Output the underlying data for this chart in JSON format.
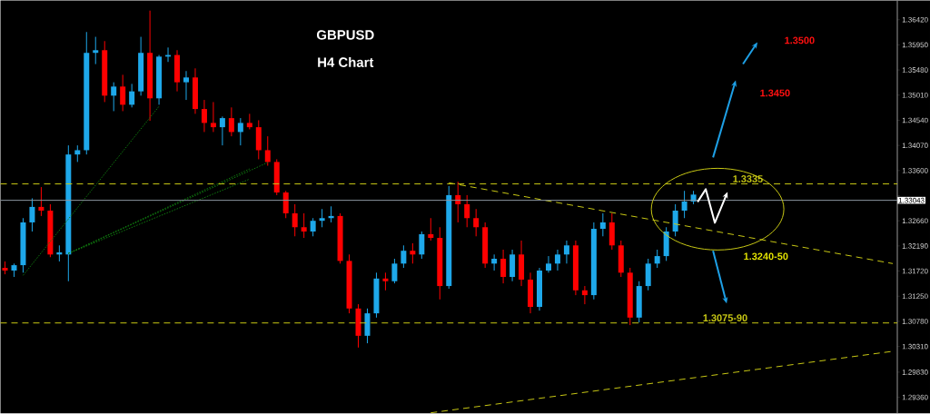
{
  "chart_data": {
    "type": "candlestick",
    "title": "GBPUSD",
    "subtitle": "H4 Chart",
    "categories": [
      null,
      null,
      null,
      null,
      null,
      null,
      null,
      null,
      null,
      null,
      null,
      null,
      null,
      null,
      null,
      null,
      null,
      null,
      null,
      null,
      null,
      null,
      null,
      null,
      null,
      null,
      null,
      null,
      null,
      null,
      null,
      null,
      null,
      null,
      null,
      null,
      null,
      null,
      null,
      null,
      null,
      null,
      null,
      null,
      null,
      null,
      null,
      null,
      null,
      null,
      null,
      null,
      null,
      null,
      null,
      null,
      null,
      null,
      null,
      null,
      null,
      null,
      null,
      null,
      null,
      null,
      null,
      null,
      null,
      null,
      null,
      null,
      null,
      null,
      null,
      null,
      null,
      null,
      null,
      null,
      null,
      null,
      null,
      null,
      null,
      null,
      null,
      null,
      null,
      null,
      null,
      null,
      null,
      null,
      null,
      null,
      null,
      null,
      null
    ],
    "ohlc": [
      [
        1.3178,
        1.319,
        1.3166,
        1.3173
      ],
      [
        1.3173,
        1.3186,
        1.3161,
        1.3183
      ],
      [
        1.3183,
        1.3271,
        1.3169,
        1.3263
      ],
      [
        1.3263,
        1.3308,
        1.3246,
        1.3292
      ],
      [
        1.3292,
        1.3329,
        1.3275,
        1.3285
      ],
      [
        1.3285,
        1.3297,
        1.3198,
        1.3203
      ],
      [
        1.3203,
        1.322,
        1.319,
        1.3207
      ],
      [
        1.3203,
        1.3407,
        1.3153,
        1.339
      ],
      [
        1.339,
        1.3407,
        1.3376,
        1.3398
      ],
      [
        1.3398,
        1.3619,
        1.339,
        1.358
      ],
      [
        1.358,
        1.361,
        1.3559,
        1.3585
      ],
      [
        1.3585,
        1.3602,
        1.3488,
        1.35
      ],
      [
        1.35,
        1.3525,
        1.3471,
        1.3517
      ],
      [
        1.3517,
        1.3539,
        1.3471,
        1.3483
      ],
      [
        1.3483,
        1.3522,
        1.3478,
        1.3508
      ],
      [
        1.3508,
        1.361,
        1.35,
        1.358
      ],
      [
        1.358,
        1.3659,
        1.3453,
        1.3495
      ],
      [
        1.3495,
        1.3576,
        1.3483,
        1.3573
      ],
      [
        1.3573,
        1.359,
        1.3563,
        1.3576
      ],
      [
        1.3576,
        1.3585,
        1.3508,
        1.3525
      ],
      [
        1.3525,
        1.3546,
        1.3492,
        1.3534
      ],
      [
        1.3534,
        1.3551,
        1.3466,
        1.3475
      ],
      [
        1.3475,
        1.3492,
        1.3432,
        1.3449
      ],
      [
        1.3449,
        1.3488,
        1.3432,
        1.3441
      ],
      [
        1.3441,
        1.3461,
        1.3407,
        1.3458
      ],
      [
        1.3458,
        1.3478,
        1.3424,
        1.3432
      ],
      [
        1.3432,
        1.3458,
        1.3407,
        1.3449
      ],
      [
        1.3449,
        1.3466,
        1.3437,
        1.3441
      ],
      [
        1.3441,
        1.3454,
        1.3381,
        1.3398
      ],
      [
        1.3398,
        1.3424,
        1.3369,
        1.3376
      ],
      [
        1.3376,
        1.3381,
        1.3314,
        1.3319
      ],
      [
        1.3319,
        1.3322,
        1.3271,
        1.328
      ],
      [
        1.328,
        1.3297,
        1.3237,
        1.3254
      ],
      [
        1.3254,
        1.328,
        1.3234,
        1.3246
      ],
      [
        1.3246,
        1.3271,
        1.3237,
        1.3266
      ],
      [
        1.3266,
        1.3288,
        1.3254,
        1.3271
      ],
      [
        1.3271,
        1.3293,
        1.3263,
        1.3275
      ],
      [
        1.3275,
        1.328,
        1.3186,
        1.3191
      ],
      [
        1.3191,
        1.3203,
        1.3093,
        1.3102
      ],
      [
        1.3102,
        1.311,
        1.3029,
        1.3051
      ],
      [
        1.3051,
        1.3102,
        1.3037,
        1.3093
      ],
      [
        1.3093,
        1.3169,
        1.3085,
        1.3158
      ],
      [
        1.3158,
        1.3169,
        1.3136,
        1.3153
      ],
      [
        1.3153,
        1.3195,
        1.3149,
        1.3186
      ],
      [
        1.3186,
        1.322,
        1.3178,
        1.321
      ],
      [
        1.321,
        1.3224,
        1.3186,
        1.3203
      ],
      [
        1.3203,
        1.3246,
        1.3195,
        1.3241
      ],
      [
        1.3241,
        1.3271,
        1.3229,
        1.3234
      ],
      [
        1.3234,
        1.3254,
        1.3119,
        1.3144
      ],
      [
        1.3144,
        1.3331,
        1.3139,
        1.3314
      ],
      [
        1.3314,
        1.3339,
        1.3263,
        1.3297
      ],
      [
        1.3297,
        1.3314,
        1.3254,
        1.3271
      ],
      [
        1.3271,
        1.3288,
        1.3237,
        1.3254
      ],
      [
        1.3254,
        1.3263,
        1.3178,
        1.3186
      ],
      [
        1.3186,
        1.3203,
        1.3173,
        1.3195
      ],
      [
        1.3195,
        1.3212,
        1.3149,
        1.3161
      ],
      [
        1.3161,
        1.3212,
        1.3153,
        1.3203
      ],
      [
        1.3203,
        1.3229,
        1.3144,
        1.3156
      ],
      [
        1.3156,
        1.3169,
        1.3093,
        1.3105
      ],
      [
        1.3105,
        1.3178,
        1.3098,
        1.3173
      ],
      [
        1.3173,
        1.32,
        1.3169,
        1.3186
      ],
      [
        1.3186,
        1.3212,
        1.3173,
        1.3203
      ],
      [
        1.3203,
        1.3229,
        1.3186,
        1.322
      ],
      [
        1.322,
        1.3229,
        1.3127,
        1.3136
      ],
      [
        1.3136,
        1.3144,
        1.311,
        1.3127
      ],
      [
        1.3127,
        1.3263,
        1.3119,
        1.3251
      ],
      [
        1.3251,
        1.328,
        1.3237,
        1.3263
      ],
      [
        1.3263,
        1.328,
        1.3212,
        1.322
      ],
      [
        1.322,
        1.3229,
        1.3161,
        1.3169
      ],
      [
        1.3169,
        1.3178,
        1.3071,
        1.3085
      ],
      [
        1.3085,
        1.3153,
        1.3076,
        1.3144
      ],
      [
        1.3144,
        1.3195,
        1.3136,
        1.3186
      ],
      [
        1.3186,
        1.3212,
        1.3178,
        1.32
      ],
      [
        1.32,
        1.3254,
        1.3191,
        1.3246
      ],
      [
        1.3246,
        1.3297,
        1.3237,
        1.3285
      ],
      [
        1.3285,
        1.3322,
        1.3271,
        1.3302
      ],
      [
        1.3302,
        1.3322,
        1.3297,
        1.3315
      ],
      null,
      null,
      null,
      null,
      null,
      null,
      null,
      null,
      null,
      null,
      null,
      null,
      null,
      null,
      null,
      null,
      null,
      null,
      null,
      null,
      null,
      null
    ],
    "colors": [
      "#ff0000",
      "#1ea8ea",
      "#1ea8ea",
      "#1ea8ea",
      "#ff0000",
      "#ff0000",
      "#1ea8ea",
      "#1ea8ea",
      "#1ea8ea",
      "#1ea8ea",
      "#1ea8ea",
      "#ff0000",
      "#1ea8ea",
      "#ff0000",
      "#1ea8ea",
      "#1ea8ea",
      "#ff0000",
      "#1ea8ea",
      "#1ea8ea",
      "#ff0000",
      "#1ea8ea",
      "#ff0000",
      "#ff0000",
      "#ff0000",
      "#1ea8ea",
      "#ff0000",
      "#1ea8ea",
      "#ff0000",
      "#ff0000",
      "#ff0000",
      "#ff0000",
      "#ff0000",
      "#ff0000",
      "#ff0000",
      "#1ea8ea",
      "#1ea8ea",
      "#1ea8ea",
      "#ff0000",
      "#ff0000",
      "#ff0000",
      "#1ea8ea",
      "#1ea8ea",
      "#ff0000",
      "#1ea8ea",
      "#1ea8ea",
      "#ff0000",
      "#1ea8ea",
      "#ff0000",
      "#ff0000",
      "#1ea8ea",
      "#ff0000",
      "#ff0000",
      "#ff0000",
      "#ff0000",
      "#1ea8ea",
      "#ff0000",
      "#1ea8ea",
      "#ff0000",
      "#ff0000",
      "#1ea8ea",
      "#1ea8ea",
      "#1ea8ea",
      "#1ea8ea",
      "#ff0000",
      "#ff0000",
      "#1ea8ea",
      "#1ea8ea",
      "#ff0000",
      "#ff0000",
      "#ff0000",
      "#1ea8ea",
      "#1ea8ea",
      "#1ea8ea",
      "#1ea8ea",
      "#1ea8ea",
      "#1ea8ea",
      "#1ea8ea",
      null,
      null,
      null,
      null,
      null,
      null,
      null,
      null,
      null,
      null,
      null,
      null,
      null,
      null,
      null,
      null,
      null,
      null,
      null,
      null,
      null,
      null
    ],
    "series": [
      {
        "type": "line",
        "values": [
          null,
          null,
          null,
          null,
          null,
          null,
          null,
          null,
          null,
          null,
          null,
          null,
          null,
          null,
          null,
          null,
          null,
          null,
          null,
          null,
          null,
          null,
          null,
          null,
          null,
          null,
          null,
          null,
          null,
          null,
          null,
          null,
          null,
          null,
          null,
          null,
          null,
          null,
          null,
          null,
          null,
          null,
          null,
          null,
          null,
          null,
          null,
          null,
          null,
          1.3337,
          null,
          null,
          null,
          null,
          null,
          null,
          null,
          null,
          null,
          null,
          null,
          null,
          null,
          null,
          null,
          null,
          null,
          null,
          null,
          null,
          null,
          null,
          null,
          null,
          null,
          null,
          null,
          null,
          null,
          null,
          null,
          null,
          null,
          null,
          null,
          null,
          null,
          null,
          null,
          null,
          null,
          null,
          null,
          null,
          null,
          null,
          null,
          null,
          1.3186
        ],
        "color": "#c8c814",
        "line_style": "dashed"
      },
      {
        "type": "line",
        "values": [
          null,
          null,
          null,
          null,
          null,
          null,
          null,
          null,
          null,
          null,
          null,
          null,
          null,
          null,
          null,
          null,
          null,
          null,
          null,
          null,
          null,
          null,
          null,
          null,
          null,
          null,
          null,
          null,
          null,
          null,
          null,
          null,
          null,
          null,
          null,
          null,
          null,
          null,
          null,
          null,
          null,
          null,
          null,
          null,
          null,
          null,
          null,
          1.2907,
          null,
          null,
          null,
          null,
          null,
          null,
          null,
          null,
          null,
          null,
          null,
          null,
          null,
          null,
          null,
          null,
          null,
          null,
          null,
          null,
          null,
          null,
          null,
          null,
          null,
          null,
          null,
          null,
          null,
          null,
          null,
          null,
          null,
          null,
          null,
          null,
          null,
          null,
          null,
          null,
          null,
          null,
          null,
          null,
          null,
          null,
          null,
          null,
          null,
          null,
          1.3022
        ],
        "color": "#c8c814",
        "line_style": "dashed"
      },
      {
        "type": "line",
        "values": [
          null,
          null,
          1.3164,
          null,
          null,
          null,
          null,
          null,
          null,
          null,
          null,
          null,
          null,
          null,
          null,
          null,
          null,
          1.348,
          null,
          null,
          null,
          null,
          null,
          null,
          null,
          null,
          null,
          null,
          null,
          null,
          null,
          null,
          null,
          null,
          null,
          null,
          null,
          null,
          null,
          null,
          null,
          null,
          null,
          null,
          null,
          null,
          null,
          null,
          null,
          null,
          null,
          null,
          null,
          null,
          null,
          null,
          null,
          null,
          null,
          null,
          null,
          null,
          null,
          null,
          null,
          null,
          null,
          null,
          null,
          null,
          null,
          null,
          null,
          null,
          null,
          null,
          null,
          null,
          null,
          null,
          null,
          null,
          null,
          null,
          null,
          null,
          null,
          null,
          null,
          null,
          null,
          null,
          null,
          null,
          null,
          null,
          null,
          null,
          null
        ],
        "color": "#0f7a0f",
        "line_style": "dotted"
      },
      {
        "type": "line",
        "values": [
          null,
          null,
          null,
          null,
          null,
          null,
          null,
          1.3205,
          null,
          null,
          null,
          null,
          null,
          null,
          null,
          null,
          null,
          null,
          null,
          null,
          null,
          null,
          null,
          null,
          null,
          null,
          null,
          null,
          null,
          1.3375,
          null,
          null,
          null,
          null,
          null,
          null,
          null,
          null,
          null,
          null,
          null,
          null,
          null,
          null,
          null,
          null,
          null,
          null,
          null,
          null,
          null,
          null,
          null,
          null,
          null,
          null,
          null,
          null,
          null,
          null,
          null,
          null,
          null,
          null,
          null,
          null,
          null,
          null,
          null,
          null,
          null,
          null,
          null,
          null,
          null,
          null,
          null,
          null,
          null,
          null,
          null,
          null,
          null,
          null,
          null,
          null,
          null,
          null,
          null,
          null,
          null,
          null,
          null,
          null,
          null,
          null,
          null,
          null,
          null
        ],
        "color": "#0f7a0f",
        "line_style": "dotted"
      },
      {
        "type": "line",
        "values": [
          null,
          null,
          null,
          null,
          null,
          null,
          null,
          1.3205,
          null,
          null,
          null,
          null,
          null,
          null,
          null,
          null,
          null,
          null,
          null,
          null,
          null,
          null,
          null,
          null,
          null,
          null,
          null,
          1.3363,
          null,
          null,
          null,
          null,
          null,
          null,
          null,
          null,
          null,
          null,
          null,
          null,
          null,
          null,
          null,
          null,
          null,
          null,
          null,
          null,
          null,
          null,
          null,
          null,
          null,
          null,
          null,
          null,
          null,
          null,
          null,
          null,
          null,
          null,
          null,
          null,
          null,
          null,
          null,
          null,
          null,
          null,
          null,
          null,
          null,
          null,
          null,
          null,
          null,
          null,
          null,
          null,
          null,
          null,
          null,
          null,
          null,
          null,
          null,
          null,
          null,
          null,
          null,
          null,
          null,
          null,
          null,
          null,
          null,
          null,
          null
        ],
        "color": "#0f7a0f",
        "line_style": "dotted"
      },
      {
        "type": "line",
        "values": [
          null,
          null,
          null,
          null,
          null,
          null,
          null,
          1.3205,
          null,
          null,
          null,
          null,
          null,
          null,
          null,
          null,
          null,
          null,
          null,
          null,
          null,
          null,
          null,
          null,
          null,
          null,
          null,
          1.3344,
          null,
          null,
          null,
          null,
          null,
          null,
          null,
          null,
          null,
          null,
          null,
          null,
          null,
          null,
          null,
          null,
          null,
          null,
          null,
          null,
          null,
          null,
          null,
          null,
          null,
          null,
          null,
          null,
          null,
          null,
          null,
          null,
          null,
          null,
          null,
          null,
          null,
          null,
          null,
          null,
          null,
          null,
          null,
          null,
          null,
          null,
          null,
          null,
          null,
          null,
          null,
          null,
          null,
          null,
          null,
          null,
          null,
          null,
          null,
          null,
          null,
          null,
          null,
          null,
          null,
          null,
          null,
          null,
          null,
          null,
          null
        ],
        "color": "#0f7a0f",
        "line_style": "dotted"
      }
    ],
    "ref_lines": [
      {
        "axis": "y",
        "value": 1.3335,
        "label": "1.3335",
        "color": "#c8c814",
        "line_style": "dashed"
      },
      {
        "axis": "y",
        "value": 1.3075,
        "label": "1.3075-90",
        "color": "#c8c814",
        "line_style": "dashed"
      },
      {
        "axis": "y",
        "value": 1.33043,
        "label": "1.33043",
        "color": "#8c96a0",
        "line_style": "solid"
      }
    ],
    "annotations": [
      "1.3500",
      "1.3450",
      "1.3240-50"
    ],
    "ylim": [
      1.2906,
      1.3678
    ],
    "yticks": [
      {
        "value": 1.3642,
        "label": "1.36420"
      },
      {
        "value": 1.3595,
        "label": "1.35950"
      },
      {
        "value": 1.3548,
        "label": "1.35480"
      },
      {
        "value": 1.3501,
        "label": "1.35010"
      },
      {
        "value": 1.3454,
        "label": "1.34540"
      },
      {
        "value": 1.3407,
        "label": "1.34070"
      },
      {
        "value": 1.336,
        "label": "1.33600"
      },
      {
        "value": 1.3313,
        "label": null
      },
      {
        "value": 1.3266,
        "label": "1.32660"
      },
      {
        "value": 1.3219,
        "label": "1.32190"
      },
      {
        "value": 1.3172,
        "label": "1.31720"
      },
      {
        "value": 1.3125,
        "label": "1.31250"
      },
      {
        "value": 1.3078,
        "label": "1.30780"
      },
      {
        "value": 1.3031,
        "label": "1.30310"
      },
      {
        "value": 1.2983,
        "label": "1.29830"
      },
      {
        "value": 1.2936,
        "label": "1.29360"
      }
    ],
    "tick_labels": "y"
  }
}
